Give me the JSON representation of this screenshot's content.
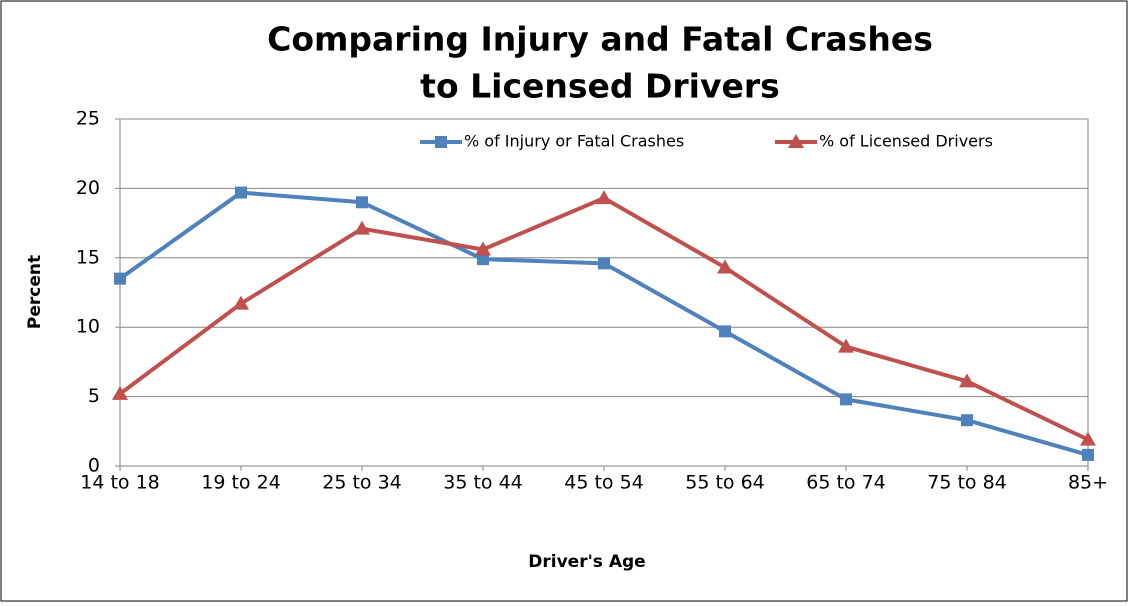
{
  "chart_data": {
    "type": "line",
    "title": [
      "Comparing Injury and Fatal Crashes",
      "to Licensed Drivers"
    ],
    "x_label": "Driver's Age",
    "y_label": "Percent",
    "categories": [
      "14 to 18",
      "19 to 24",
      "25 to 34",
      "35 to 44",
      "45 to 54",
      "55 to 64",
      "65 to 74",
      "75 to 84",
      "85+"
    ],
    "series": [
      {
        "name": "% of Injury or Fatal Crashes",
        "color": "#4f81bd",
        "marker": "square",
        "values": [
          13.5,
          19.7,
          19.0,
          14.9,
          14.6,
          9.7,
          4.8,
          3.3,
          0.8
        ]
      },
      {
        "name": "% of Licensed Drivers",
        "color": "#c0504d",
        "marker": "triangle",
        "values": [
          5.2,
          11.7,
          17.1,
          15.6,
          19.3,
          14.3,
          8.6,
          6.1,
          1.9
        ]
      }
    ],
    "ylim": [
      0,
      25
    ],
    "yticks": [
      0,
      5,
      10,
      15,
      20,
      25
    ],
    "grid": true,
    "legend": "top"
  }
}
